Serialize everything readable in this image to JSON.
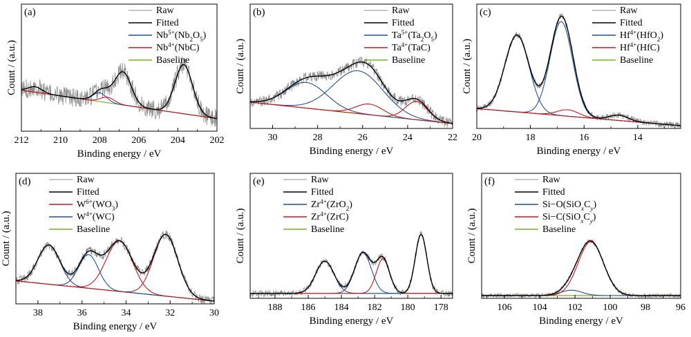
{
  "figure": {
    "background": "#ffffff"
  },
  "colors": {
    "raw": "#8c8c8c",
    "fitted": "#000000",
    "blue": "#1f4e9a",
    "red": "#c8141e",
    "baseline": "#6fb51e"
  },
  "xlabel_common": "Binding energy / eV",
  "ylabel_common": "Count / (a.u.)",
  "chart_data": [
    {
      "panel": "(a)",
      "type": "line",
      "xlim": [
        212,
        202
      ],
      "x_reversed": true,
      "xticks": [
        212,
        210,
        208,
        206,
        204,
        202
      ],
      "xlabel": "Binding energy / eV",
      "ylabel": "Count / (a.u.)",
      "legend_position": "top-right",
      "baseline": [
        [
          212,
          0.35
        ],
        [
          202,
          0.09
        ]
      ],
      "peaks": [
        {
          "component": "blue",
          "center": 208.0,
          "height": 0.08,
          "width": 0.35
        },
        {
          "component": "red",
          "center": 207.6,
          "height": 0.05,
          "width": 0.35
        },
        {
          "component": "extra",
          "center": 211.3,
          "height": 0.05,
          "width": 0.35
        },
        {
          "component": "extra",
          "center": 206.8,
          "height": 0.3,
          "width": 0.42
        },
        {
          "component": "extra",
          "center": 203.7,
          "height": 0.45,
          "width": 0.45
        }
      ],
      "noise": 0.09,
      "series": [
        {
          "name": "Raw",
          "style": "raw",
          "legend": [
            {
              "t": "Raw"
            }
          ]
        },
        {
          "name": "Fitted",
          "style": "fitted",
          "legend": [
            {
              "t": "Fitted"
            }
          ]
        },
        {
          "name": "Nb5+(Nb2O5)",
          "style": "blue",
          "legend": [
            {
              "t": "Nb"
            },
            {
              "t": "5+",
              "s": "sup"
            },
            {
              "t": "(Nb"
            },
            {
              "t": "2",
              "s": "sub"
            },
            {
              "t": "O"
            },
            {
              "t": "5",
              "s": "sub"
            },
            {
              "t": ")"
            }
          ]
        },
        {
          "name": "Nb4+(NbC)",
          "style": "red",
          "legend": [
            {
              "t": "Nb"
            },
            {
              "t": "4+",
              "s": "sup"
            },
            {
              "t": "(NbC)"
            }
          ]
        },
        {
          "name": "Baseline",
          "style": "baseline",
          "legend": [
            {
              "t": "Baseline"
            }
          ]
        }
      ]
    },
    {
      "panel": "(b)",
      "type": "line",
      "xlim": [
        31,
        22
      ],
      "x_reversed": true,
      "xticks": [
        30,
        28,
        26,
        24,
        22
      ],
      "xlabel": "Binding energy / eV",
      "ylabel": "Count / (a.u.)",
      "legend_position": "top-right",
      "baseline": [
        [
          31,
          0.22
        ],
        [
          22,
          0.02
        ]
      ],
      "peaks": [
        {
          "component": "blue",
          "center": 28.5,
          "height": 0.24,
          "width": 0.9
        },
        {
          "component": "blue",
          "center": 26.2,
          "height": 0.4,
          "width": 1.1
        },
        {
          "component": "red",
          "center": 25.7,
          "height": 0.1,
          "width": 0.6
        },
        {
          "component": "red",
          "center": 23.6,
          "height": 0.17,
          "width": 0.5
        }
      ],
      "noise": 0.05,
      "series": [
        {
          "name": "Raw",
          "style": "raw",
          "legend": [
            {
              "t": "Raw"
            }
          ]
        },
        {
          "name": "Fitted",
          "style": "fitted",
          "legend": [
            {
              "t": "Fitted"
            }
          ]
        },
        {
          "name": "Ta5+(Ta2O5)",
          "style": "blue",
          "legend": [
            {
              "t": "Ta"
            },
            {
              "t": "5+",
              "s": "sup"
            },
            {
              "t": "(Ta"
            },
            {
              "t": "2",
              "s": "sub"
            },
            {
              "t": "O"
            },
            {
              "t": "5",
              "s": "sub"
            },
            {
              "t": ")"
            }
          ]
        },
        {
          "name": "Ta4+(TaC)",
          "style": "red",
          "legend": [
            {
              "t": "Ta"
            },
            {
              "t": "4+",
              "s": "sup"
            },
            {
              "t": "(TaC)"
            }
          ]
        },
        {
          "name": "Baseline",
          "style": "baseline",
          "legend": [
            {
              "t": "Baseline"
            }
          ]
        }
      ]
    },
    {
      "panel": "(c)",
      "type": "line",
      "xlim": [
        20,
        12.4
      ],
      "x_reversed": true,
      "xticks": [
        20,
        18,
        16,
        14
      ],
      "xlabel": "Binding energy / eV",
      "ylabel": "Count / (a.u.)",
      "legend_position": "top-right",
      "baseline": [
        [
          20,
          0.16
        ],
        [
          12.4,
          0.0
        ]
      ],
      "peaks": [
        {
          "component": "blue",
          "center": 18.5,
          "height": 0.72,
          "width": 0.45
        },
        {
          "component": "blue",
          "center": 16.85,
          "height": 0.88,
          "width": 0.42
        },
        {
          "component": "red",
          "center": 16.6,
          "height": 0.06,
          "width": 0.4
        },
        {
          "component": "red",
          "center": 14.7,
          "height": 0.05,
          "width": 0.35
        }
      ],
      "noise": 0.03,
      "series": [
        {
          "name": "Raw",
          "style": "raw",
          "legend": [
            {
              "t": "Raw"
            }
          ]
        },
        {
          "name": "Fitted",
          "style": "fitted",
          "legend": [
            {
              "t": "Fitted"
            }
          ]
        },
        {
          "name": "Hf4+(HfO2)",
          "style": "blue",
          "legend": [
            {
              "t": "Hf"
            },
            {
              "t": "4+",
              "s": "sup"
            },
            {
              "t": "(HfO"
            },
            {
              "t": "2",
              "s": "sub"
            },
            {
              "t": ")"
            }
          ]
        },
        {
          "name": "Hf4+(HfC)",
          "style": "red",
          "legend": [
            {
              "t": "Hf"
            },
            {
              "t": "4+",
              "s": "sup"
            },
            {
              "t": "(HfC)"
            }
          ]
        },
        {
          "name": "Baseline",
          "style": "baseline",
          "legend": [
            {
              "t": "Baseline"
            }
          ]
        }
      ]
    },
    {
      "panel": "(d)",
      "type": "line",
      "xlim": [
        39,
        30
      ],
      "x_reversed": true,
      "xticks": [
        38,
        36,
        34,
        32,
        30
      ],
      "xlabel": "Binding energy / eV",
      "ylabel": "Count / (a.u.)",
      "legend_position": "top-left",
      "baseline": [
        [
          39,
          0.18
        ],
        [
          30,
          0.0
        ]
      ],
      "peaks": [
        {
          "component": "blue",
          "center": 37.5,
          "height": 0.35,
          "width": 0.5
        },
        {
          "component": "blue",
          "center": 35.7,
          "height": 0.3,
          "width": 0.45
        },
        {
          "component": "red",
          "center": 34.3,
          "height": 0.45,
          "width": 0.6
        },
        {
          "component": "red",
          "center": 32.2,
          "height": 0.55,
          "width": 0.55
        }
      ],
      "noise": 0.04,
      "series": [
        {
          "name": "Raw",
          "style": "raw",
          "legend": [
            {
              "t": "Raw"
            }
          ]
        },
        {
          "name": "Fitted",
          "style": "fitted",
          "legend": [
            {
              "t": "Fitted"
            }
          ]
        },
        {
          "name": "W6+(WO3)",
          "style": "red",
          "legend": [
            {
              "t": "W"
            },
            {
              "t": "6+",
              "s": "sup"
            },
            {
              "t": "(WO"
            },
            {
              "t": "3",
              "s": "sub"
            },
            {
              "t": ")"
            }
          ]
        },
        {
          "name": "W4+(WC)",
          "style": "blue",
          "legend": [
            {
              "t": "W"
            },
            {
              "t": "4+",
              "s": "sup"
            },
            {
              "t": "(WC)"
            }
          ]
        },
        {
          "name": "Baseline",
          "style": "baseline",
          "legend": [
            {
              "t": "Baseline"
            }
          ]
        }
      ]
    },
    {
      "panel": "(e)",
      "type": "line",
      "xlim": [
        189.5,
        177.3
      ],
      "x_reversed": true,
      "xticks": [
        188,
        186,
        184,
        182,
        180,
        178
      ],
      "xlabel": "Binding energy / eV",
      "ylabel": "Count / (a.u.)",
      "legend_position": "top-left",
      "baseline": [
        [
          189.5,
          0.02
        ],
        [
          177.3,
          0.02
        ]
      ],
      "peaks": [
        {
          "component": "blue",
          "center": 185.0,
          "height": 0.3,
          "width": 0.55
        },
        {
          "component": "blue",
          "center": 182.7,
          "height": 0.38,
          "width": 0.5
        },
        {
          "component": "red",
          "center": 181.5,
          "height": 0.32,
          "width": 0.4
        },
        {
          "component": "extra",
          "center": 179.2,
          "height": 0.55,
          "width": 0.35
        }
      ],
      "noise": 0.03,
      "series": [
        {
          "name": "Raw",
          "style": "raw",
          "legend": [
            {
              "t": "Raw"
            }
          ]
        },
        {
          "name": "Fitted",
          "style": "fitted",
          "legend": [
            {
              "t": "Fitted"
            }
          ]
        },
        {
          "name": "Zr4+(ZrO2)",
          "style": "blue",
          "legend": [
            {
              "t": "Zr"
            },
            {
              "t": "4+",
              "s": "sup"
            },
            {
              "t": "(ZrO"
            },
            {
              "t": "2",
              "s": "sub"
            },
            {
              "t": ")"
            }
          ]
        },
        {
          "name": "Zr4+(ZrC)",
          "style": "red",
          "legend": [
            {
              "t": "Zr"
            },
            {
              "t": "4+",
              "s": "sup"
            },
            {
              "t": "(ZrC)"
            }
          ]
        },
        {
          "name": "Baseline",
          "style": "baseline",
          "legend": [
            {
              "t": "Baseline"
            }
          ]
        }
      ]
    },
    {
      "panel": "(f)",
      "type": "line",
      "xlim": [
        107.3,
        96
      ],
      "x_reversed": true,
      "xticks": [
        106,
        104,
        102,
        100,
        98,
        96
      ],
      "xlabel": "Binding energy / eV",
      "ylabel": "Count / (a.u.)",
      "legend_position": "top-left",
      "baseline": [
        [
          107.3,
          0.0
        ],
        [
          96,
          0.0
        ]
      ],
      "peaks": [
        {
          "component": "blue",
          "center": 102.2,
          "height": 0.05,
          "width": 0.6
        },
        {
          "component": "red",
          "center": 101.1,
          "height": 0.5,
          "width": 0.72
        }
      ],
      "noise": 0.02,
      "series": [
        {
          "name": "Raw",
          "style": "raw",
          "legend": [
            {
              "t": "Raw"
            }
          ]
        },
        {
          "name": "Fitted",
          "style": "fitted",
          "legend": [
            {
              "t": "Fitted"
            }
          ]
        },
        {
          "name": "Si-O(SiOxCy)",
          "style": "blue",
          "legend": [
            {
              "t": "Si−O(SiO"
            },
            {
              "t": "x",
              "s": "sub",
              "i": true
            },
            {
              "t": "C"
            },
            {
              "t": "y",
              "s": "sub",
              "i": true
            },
            {
              "t": ")"
            }
          ]
        },
        {
          "name": "Si-C(SiOxCy)",
          "style": "red",
          "legend": [
            {
              "t": "Si−C(SiO"
            },
            {
              "t": "x",
              "s": "sub",
              "i": true
            },
            {
              "t": "C"
            },
            {
              "t": "y",
              "s": "sub",
              "i": true
            },
            {
              "t": ")"
            }
          ]
        },
        {
          "name": "Baseline",
          "style": "baseline",
          "legend": [
            {
              "t": "Baseline"
            }
          ]
        }
      ]
    }
  ]
}
